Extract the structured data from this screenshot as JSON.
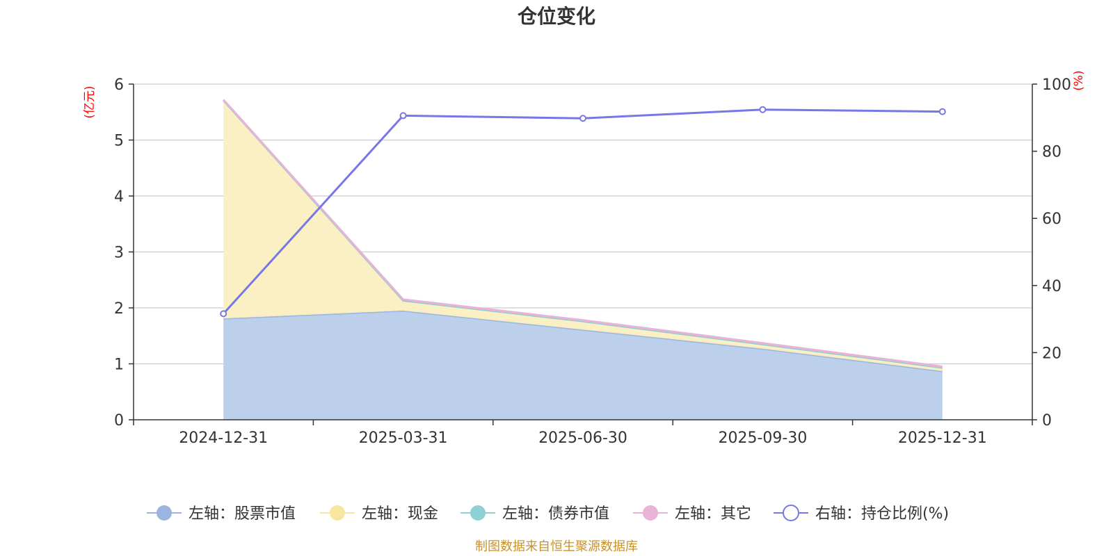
{
  "chart_data": {
    "type": "area",
    "title": "仓位变化",
    "categories": [
      "2024-12-31",
      "2025-03-31",
      "2025-06-30",
      "2025-09-30",
      "2025-12-31"
    ],
    "left_axis": {
      "unit": "(亿元)",
      "ylim": [
        0,
        6
      ],
      "ticks": [
        "0",
        "1",
        "2",
        "3",
        "4",
        "5",
        "6"
      ]
    },
    "right_axis": {
      "unit": "(%)",
      "ylim": [
        0,
        100
      ],
      "ticks": [
        "0",
        "20",
        "40",
        "60",
        "80",
        "100"
      ]
    },
    "series": [
      {
        "name": "左轴：股票市值",
        "axis": "left",
        "stack": true,
        "values": [
          1.81,
          1.95,
          1.61,
          1.27,
          0.87
        ],
        "line_color": "#9bb5e0",
        "fill_color": "#b8cdea"
      },
      {
        "name": "左轴：现金",
        "axis": "left",
        "stack": true,
        "values": [
          3.9,
          0.18,
          0.15,
          0.08,
          0.06
        ],
        "line_color": "#f8e5a0",
        "fill_color": "#faefc0"
      },
      {
        "name": "左轴：债券市值",
        "axis": "left",
        "stack": true,
        "values": [
          0,
          0,
          0,
          0,
          0
        ],
        "line_color": "#8fd0d3",
        "fill_color": "#8fd0d3"
      },
      {
        "name": "左轴：其它",
        "axis": "left",
        "stack": true,
        "values": [
          0.01,
          0.02,
          0.02,
          0.02,
          0.02
        ],
        "line_color": "#e8b3d6",
        "fill_color": "#e8b3d6"
      },
      {
        "name": "右轴：持仓比例(%)",
        "axis": "right",
        "stack": false,
        "values": [
          31.6,
          90.6,
          89.8,
          92.4,
          91.8
        ],
        "line_color": "#7777e6"
      }
    ],
    "grid": true,
    "legend": "bottom"
  },
  "source_text": "制图数据来自恒生聚源数据库"
}
